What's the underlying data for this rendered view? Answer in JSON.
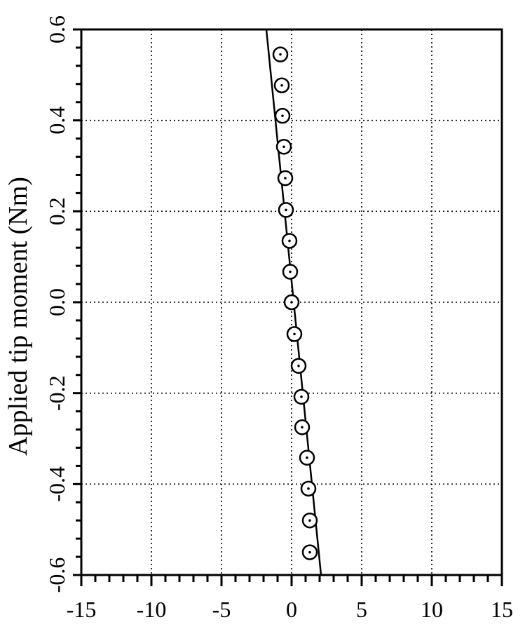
{
  "chart_data": {
    "type": "scatter",
    "title": "",
    "xlabel": "",
    "ylabel": "Applied tip moment (Nm)",
    "xlim": [
      -15,
      15
    ],
    "ylim": [
      -0.6,
      0.6
    ],
    "x_tick_labels": [
      "-15",
      "-10",
      "-5",
      "0",
      "5",
      "10",
      "15"
    ],
    "y_tick_labels": [
      "-0.6",
      "-0.4",
      "-0.2",
      "0.0",
      "0.2",
      "0.4",
      "0.6"
    ],
    "grid": true,
    "series": [
      {
        "kind": "points",
        "marker": "circle-with-center-dot",
        "x": [
          -0.8,
          -0.7,
          -0.65,
          -0.55,
          -0.45,
          -0.4,
          -0.15,
          -0.1,
          0.0,
          0.2,
          0.5,
          0.7,
          0.75,
          1.1,
          1.2,
          1.3,
          1.3
        ],
        "y": [
          0.545,
          0.477,
          0.41,
          0.342,
          0.273,
          0.203,
          0.135,
          0.067,
          0.0,
          -0.07,
          -0.14,
          -0.208,
          -0.275,
          -0.342,
          -0.41,
          -0.48,
          -0.55
        ]
      },
      {
        "kind": "line",
        "x": [
          -1.8,
          2.1
        ],
        "y": [
          0.6,
          -0.6
        ]
      }
    ]
  }
}
